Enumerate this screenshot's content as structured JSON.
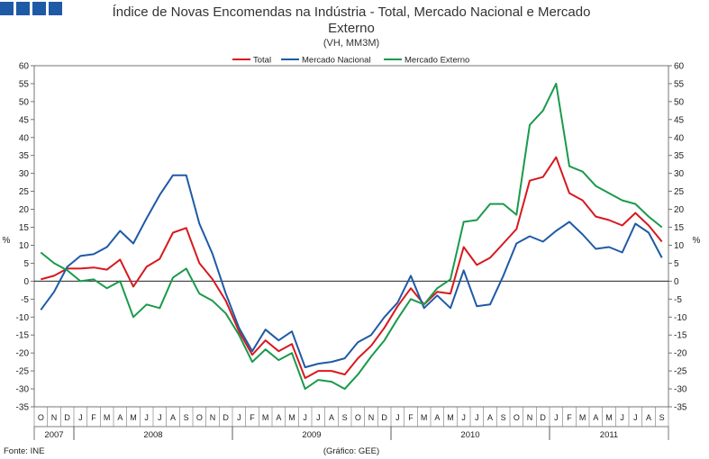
{
  "chart_data": {
    "type": "line",
    "title": "Índice de Novas Encomendas na Indústria - Total, Mercado Nacional e Mercado",
    "title_line2": "Externo",
    "subtitle": "(VH, MM3M)",
    "ylabel_left": "%",
    "ylabel_right": "%",
    "ylim": [
      -35,
      60
    ],
    "yticks": [
      -35,
      -30,
      -25,
      -20,
      -15,
      -10,
      -5,
      0,
      5,
      10,
      15,
      20,
      25,
      30,
      35,
      40,
      45,
      50,
      55,
      60
    ],
    "months": [
      "O",
      "N",
      "D",
      "J",
      "F",
      "M",
      "A",
      "M",
      "J",
      "J",
      "A",
      "S",
      "O",
      "N",
      "D",
      "J",
      "F",
      "M",
      "A",
      "M",
      "J",
      "J",
      "A",
      "S",
      "O",
      "N",
      "D",
      "J",
      "F",
      "M",
      "A",
      "M",
      "J",
      "J",
      "A",
      "S",
      "O",
      "N",
      "D",
      "J",
      "F",
      "M",
      "A",
      "M",
      "J",
      "J",
      "A",
      "S"
    ],
    "years": [
      {
        "label": "2007",
        "start": 0,
        "count": 3
      },
      {
        "label": "2008",
        "start": 3,
        "count": 12
      },
      {
        "label": "2009",
        "start": 15,
        "count": 12
      },
      {
        "label": "2010",
        "start": 27,
        "count": 12
      },
      {
        "label": "2011",
        "start": 39,
        "count": 9
      }
    ],
    "series": [
      {
        "name": "Total",
        "color": "#d71920",
        "values": [
          0.5,
          1.5,
          3.5,
          3.5,
          3.8,
          3.2,
          6.0,
          -1.5,
          4.0,
          6.2,
          13.5,
          14.8,
          5.0,
          0.5,
          -5.5,
          -14.0,
          -20.5,
          -16.5,
          -19.5,
          -17.5,
          -27.0,
          -25.0,
          -25.0,
          -26.0,
          -21.5,
          -18.0,
          -13.0,
          -7.0,
          -2.0,
          -6.5,
          -3.0,
          -3.5,
          9.5,
          4.5,
          6.5,
          10.5,
          14.5,
          28.0,
          29.0,
          34.5,
          24.5,
          22.5,
          18.0,
          17.0,
          15.5,
          19.0,
          15.5,
          11.0
        ]
      },
      {
        "name": "Mercado Nacional",
        "color": "#1f5aa6",
        "values": [
          -8.0,
          -3.0,
          4.0,
          7.0,
          7.5,
          9.5,
          14.0,
          10.5,
          17.5,
          24.0,
          29.5,
          29.5,
          16.0,
          7.5,
          -3.5,
          -13.0,
          -19.5,
          -13.5,
          -16.5,
          -14.0,
          -24.0,
          -23.0,
          -22.5,
          -21.5,
          -17.0,
          -15.0,
          -10.0,
          -6.0,
          1.5,
          -7.5,
          -4.0,
          -7.5,
          3.0,
          -7.0,
          -6.5,
          1.5,
          10.5,
          12.5,
          11.0,
          14.0,
          16.5,
          13.0,
          9.0,
          9.5,
          8.0,
          16.0,
          13.5,
          6.5
        ]
      },
      {
        "name": "Mercado Externo",
        "color": "#1a9a4c",
        "values": [
          8.0,
          5.0,
          3.0,
          0.0,
          0.5,
          -2.0,
          0.0,
          -10.0,
          -6.5,
          -7.5,
          1.0,
          3.5,
          -3.5,
          -5.5,
          -9.0,
          -15.0,
          -22.5,
          -19.0,
          -22.0,
          -20.0,
          -30.0,
          -27.5,
          -28.0,
          -30.0,
          -26.0,
          -21.0,
          -16.5,
          -10.5,
          -5.0,
          -6.5,
          -2.0,
          0.5,
          16.5,
          17.0,
          21.5,
          21.5,
          18.5,
          43.5,
          47.5,
          55.0,
          32.0,
          30.5,
          26.5,
          24.5,
          22.5,
          21.5,
          18.0,
          15.0
        ]
      }
    ]
  },
  "footer": {
    "source": "Fonte: INE",
    "credit": "(Gráfico: GEE)"
  }
}
